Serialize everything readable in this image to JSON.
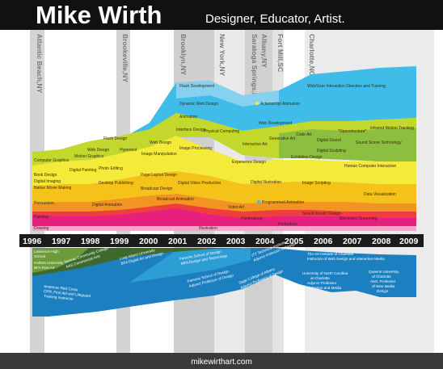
{
  "header": {
    "name": "Mike Wirth",
    "tagline": "Designer, Educator, Artist."
  },
  "footer": {
    "url": "mikewirthart.com"
  },
  "timeline": {
    "years": [
      "1996",
      "1997",
      "1998",
      "1999",
      "2000",
      "2001",
      "2002",
      "2003",
      "2004",
      "2005",
      "2006",
      "2007",
      "2008",
      "2009"
    ]
  },
  "locations": [
    {
      "name": "Atlantic Beach,NY"
    },
    {
      "name": "Brookeville,NY"
    },
    {
      "name": "Brooklyn,NY"
    },
    {
      "name": "New York,NY"
    },
    {
      "name": "Saratoga Springs,NY"
    },
    {
      "name": "Albany,NY"
    },
    {
      "name": "Fort Mill,SC"
    },
    {
      "name": "Charlotte,NC"
    }
  ],
  "skill_labels": [
    {
      "text": "Flash Development"
    },
    {
      "text": "Dynamic Web Design"
    },
    {
      "text": "Web Development"
    },
    {
      "text": "Actionscript Animation"
    },
    {
      "text": "Web/User Interaction Direction and Training"
    },
    {
      "text": "Flash Design"
    },
    {
      "text": "Web Design"
    },
    {
      "text": "Motion Graphics"
    },
    {
      "text": "Animation"
    },
    {
      "text": "Interface Design"
    },
    {
      "text": "Physical Computing"
    },
    {
      "text": "Generative Art"
    },
    {
      "text": "Code Art"
    },
    {
      "text": "Digital Sound"
    },
    {
      "text": "Interactive Art"
    },
    {
      "text": "\"Openstructure\""
    },
    {
      "text": "Infrared Motion Tracking"
    },
    {
      "text": "Digital Sculpting"
    },
    {
      "text": "Sound Scene Technology"
    },
    {
      "text": "Computer Graphics"
    },
    {
      "text": "Hypertext"
    },
    {
      "text": "Image Manipulation"
    },
    {
      "text": "Web Design"
    },
    {
      "text": "Digital Painting"
    },
    {
      "text": "Photo Editing"
    },
    {
      "text": "Image Processing"
    },
    {
      "text": "Experience Design"
    },
    {
      "text": "Exhibition Design"
    },
    {
      "text": "Human Computer Interaction"
    },
    {
      "text": "Desktop Publishing"
    },
    {
      "text": "Page Layout Design"
    },
    {
      "text": "Digital Illustration"
    },
    {
      "text": "Image Scripting"
    },
    {
      "text": "Data Visualization"
    },
    {
      "text": "Book Design"
    },
    {
      "text": "Digital Imaging"
    },
    {
      "text": "Broadcast Design"
    },
    {
      "text": "Digital Video Production"
    },
    {
      "text": "Programmed Animation"
    },
    {
      "text": "Native Movie Making"
    },
    {
      "text": "Digital Animation"
    },
    {
      "text": "Broadcast Animation"
    },
    {
      "text": "Video Art"
    },
    {
      "text": "Percussion"
    },
    {
      "text": "Electronic Drumming"
    },
    {
      "text": "Sound Kinetic Design"
    },
    {
      "text": "Painting"
    },
    {
      "text": "Printmaking"
    },
    {
      "text": "Portraiture"
    },
    {
      "text": "Illustration"
    },
    {
      "text": "Drawing"
    }
  ],
  "roles": [
    {
      "lines": [
        "Lawrence High",
        "School"
      ]
    },
    {
      "lines": [
        "Hofstra University",
        "BFA Fine Art"
      ]
    },
    {
      "lines": [
        "Nassau Community College",
        "AAS Commercial Arts"
      ]
    },
    {
      "lines": [
        "Long Island University",
        "BFA Digital Art and Design"
      ]
    },
    {
      "lines": [
        "Parsons School of Design",
        "MFA Design and Technology"
      ]
    },
    {
      "lines": [
        "Parsons School of Design",
        "Adjunct Professor of Design"
      ]
    },
    {
      "lines": [
        "ITT Technical Institute",
        "Adjunct Instructor of Design"
      ]
    },
    {
      "lines": [
        "Sage College of Albany",
        "Adjunct Professor of Design"
      ]
    },
    {
      "lines": [
        "The Art Institute of Charlotte",
        "Instructor of Web Design and Interactive Media"
      ]
    },
    {
      "lines": [
        "University of North Carolina",
        "at Charlotte",
        "Adjunct Professor",
        "of Design and Media"
      ]
    },
    {
      "lines": [
        "Queens University",
        "of Charlotte",
        "Asst. Professor",
        "of New Media",
        "Design"
      ]
    },
    {
      "lines": [
        "American Red Cross",
        "CPR, First Aid and Lifeguard",
        "Training Instructor"
      ]
    }
  ],
  "colors": {
    "header_bg": "#111111",
    "footer_bg": "#3a3a3a",
    "band_gray": "#cfcfcf",
    "cyan": "#3fbde8",
    "light_blue": "#9ed8f2",
    "lime": "#c3d82d",
    "green": "#8cbf3f",
    "yellow": "#f4ea3a",
    "gold": "#f5c21a",
    "orange": "#f29421",
    "red": "#ef3e3e",
    "magenta": "#e6207c",
    "dark_green": "#3d6a2c",
    "blue": "#1b7fc0"
  }
}
